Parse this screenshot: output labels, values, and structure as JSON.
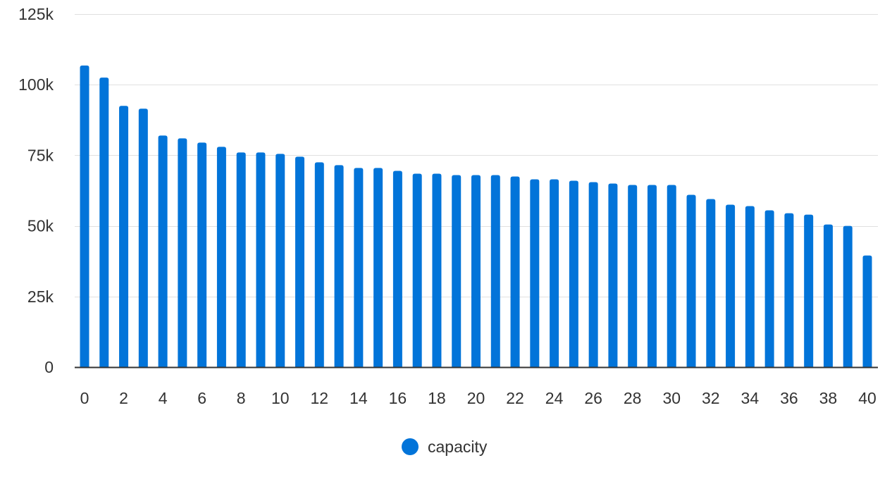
{
  "chart_data": {
    "type": "bar",
    "title": "",
    "xlabel": "",
    "ylabel": "",
    "x_tick_labels": [
      "0",
      "2",
      "4",
      "6",
      "8",
      "10",
      "12",
      "14",
      "16",
      "18",
      "20",
      "22",
      "24",
      "26",
      "28",
      "30",
      "32",
      "34",
      "36",
      "38",
      "40"
    ],
    "y_tick_labels": [
      "0",
      "25k",
      "50k",
      "75k",
      "100k",
      "125k"
    ],
    "y_ticks": [
      0,
      25000,
      50000,
      75000,
      100000,
      125000
    ],
    "ylim": [
      0,
      125000
    ],
    "xlim": [
      0,
      40
    ],
    "grid": true,
    "legend_position": "bottom-center",
    "categories": [
      0,
      1,
      2,
      3,
      4,
      5,
      6,
      7,
      8,
      9,
      10,
      11,
      12,
      13,
      14,
      15,
      16,
      17,
      18,
      19,
      20,
      21,
      22,
      23,
      24,
      25,
      26,
      27,
      28,
      29,
      30,
      31,
      32,
      33,
      34,
      35,
      36,
      37,
      38,
      39,
      40
    ],
    "series": [
      {
        "name": "capacity",
        "color": "#0274d9",
        "values": [
          106800,
          102500,
          92500,
          91500,
          82000,
          81000,
          79500,
          78000,
          76000,
          76000,
          75500,
          74500,
          72500,
          71500,
          70500,
          70500,
          69500,
          68500,
          68500,
          68000,
          68000,
          68000,
          67500,
          66500,
          66500,
          66000,
          65500,
          65000,
          64500,
          64500,
          64500,
          61000,
          59500,
          57500,
          57000,
          55500,
          54500,
          54000,
          50500,
          50000,
          39500
        ]
      }
    ]
  }
}
